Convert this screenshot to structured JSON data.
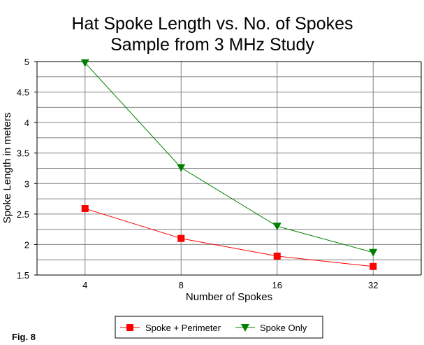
{
  "chart_data": {
    "type": "line",
    "title": "Hat Spoke Length vs. No. of Spokes",
    "subtitle": "Sample from 3 MHz Study",
    "xlabel": "Number of Spokes",
    "ylabel": "Spoke Length in meters",
    "categories": [
      "4",
      "8",
      "16",
      "32"
    ],
    "ylim": [
      1.5,
      5
    ],
    "yticks": [
      "1.5",
      "2",
      "2.5",
      "3",
      "3.5",
      "4",
      "4.5",
      "5"
    ],
    "grid": true,
    "legend_position": "bottom",
    "series": [
      {
        "name": "Spoke + Perimeter",
        "values": [
          2.59,
          2.1,
          1.81,
          1.64
        ],
        "color": "#ff0000",
        "marker": "square"
      },
      {
        "name": "Spoke Only",
        "values": [
          4.98,
          3.26,
          2.3,
          1.87
        ],
        "color": "#008000",
        "marker": "triangle-down"
      }
    ]
  },
  "figure_label": "Fig. 8"
}
